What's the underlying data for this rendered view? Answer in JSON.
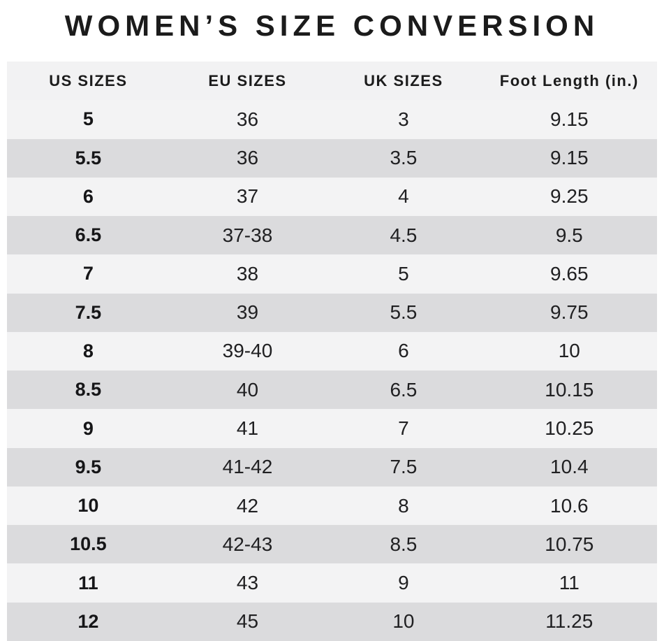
{
  "title": "WOMEN’S SIZE CONVERSION",
  "colors": {
    "row_dark": "#dbdbdd",
    "row_light": "#f3f3f4",
    "header_bg": "#f2f2f3",
    "text": "#1b1b1b",
    "background": "#ffffff"
  },
  "chart_data": {
    "type": "table",
    "title": "WOMEN’S SIZE CONVERSION",
    "columns": [
      "US SIZES",
      "EU SIZES",
      "UK SIZES",
      "Foot Length (in.)"
    ],
    "rows": [
      [
        "5",
        "36",
        "3",
        "9.15"
      ],
      [
        "5.5",
        "36",
        "3.5",
        "9.15"
      ],
      [
        "6",
        "37",
        "4",
        "9.25"
      ],
      [
        "6.5",
        "37-38",
        "4.5",
        "9.5"
      ],
      [
        "7",
        "38",
        "5",
        "9.65"
      ],
      [
        "7.5",
        "39",
        "5.5",
        "9.75"
      ],
      [
        "8",
        "39-40",
        "6",
        "10"
      ],
      [
        "8.5",
        "40",
        "6.5",
        "10.15"
      ],
      [
        "9",
        "41",
        "7",
        "10.25"
      ],
      [
        "9.5",
        "41-42",
        "7.5",
        "10.4"
      ],
      [
        "10",
        "42",
        "8",
        "10.6"
      ],
      [
        "10.5",
        "42-43",
        "8.5",
        "10.75"
      ],
      [
        "11",
        "43",
        "9",
        "11"
      ],
      [
        "12",
        "45",
        "10",
        "11.25"
      ]
    ]
  }
}
